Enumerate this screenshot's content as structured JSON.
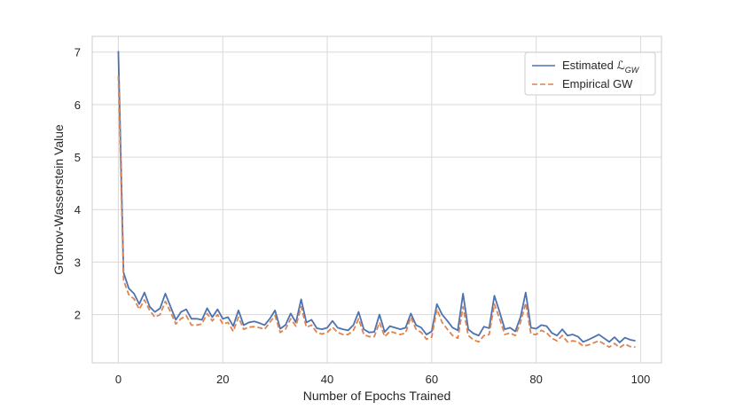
{
  "chart_data": {
    "type": "line",
    "xlabel": "Number of Epochs Trained",
    "ylabel": "Gromov-Wasserstein Value",
    "xlim": [
      -5,
      104
    ],
    "ylim": [
      1.08,
      7.3
    ],
    "x_ticks": [
      0,
      20,
      40,
      60,
      80,
      100
    ],
    "y_ticks": [
      2,
      3,
      4,
      5,
      6,
      7
    ],
    "grid": true,
    "legend_position": "top-right",
    "x": [
      0,
      1,
      2,
      3,
      4,
      5,
      6,
      7,
      8,
      9,
      10,
      11,
      12,
      13,
      14,
      15,
      16,
      17,
      18,
      19,
      20,
      21,
      22,
      23,
      24,
      25,
      26,
      27,
      28,
      29,
      30,
      31,
      32,
      33,
      34,
      35,
      36,
      37,
      38,
      39,
      40,
      41,
      42,
      43,
      44,
      45,
      46,
      47,
      48,
      49,
      50,
      51,
      52,
      53,
      54,
      55,
      56,
      57,
      58,
      59,
      60,
      61,
      62,
      63,
      64,
      65,
      66,
      67,
      68,
      69,
      70,
      71,
      72,
      73,
      74,
      75,
      76,
      77,
      78,
      79,
      80,
      81,
      82,
      83,
      84,
      85,
      86,
      87,
      88,
      89,
      90,
      91,
      92,
      93,
      94,
      95,
      96,
      97,
      98,
      99
    ],
    "series": [
      {
        "name": "Estimated ",
        "name_math": "ℒ",
        "name_sub": "GW",
        "color": "#4c72b0",
        "dash": "solid",
        "values": [
          7.02,
          2.8,
          2.5,
          2.4,
          2.2,
          2.42,
          2.15,
          2.05,
          2.12,
          2.4,
          2.15,
          1.9,
          2.05,
          2.1,
          1.92,
          1.92,
          1.9,
          2.12,
          1.95,
          2.1,
          1.92,
          1.95,
          1.78,
          2.08,
          1.8,
          1.85,
          1.87,
          1.84,
          1.8,
          1.92,
          2.08,
          1.73,
          1.8,
          2.02,
          1.85,
          2.29,
          1.85,
          1.9,
          1.74,
          1.72,
          1.75,
          1.88,
          1.75,
          1.72,
          1.7,
          1.8,
          2.05,
          1.72,
          1.66,
          1.67,
          2.0,
          1.67,
          1.78,
          1.75,
          1.72,
          1.75,
          2.02,
          1.8,
          1.75,
          1.62,
          1.68,
          2.2,
          2.0,
          1.88,
          1.75,
          1.7,
          2.4,
          1.72,
          1.64,
          1.6,
          1.77,
          1.74,
          2.36,
          2.05,
          1.72,
          1.75,
          1.68,
          1.95,
          2.42,
          1.75,
          1.73,
          1.8,
          1.78,
          1.65,
          1.6,
          1.72,
          1.6,
          1.62,
          1.58,
          1.48,
          1.52,
          1.57,
          1.62,
          1.55,
          1.48,
          1.57,
          1.47,
          1.56,
          1.52,
          1.5
        ]
      },
      {
        "name": "Empirical GW",
        "color": "#dd8452",
        "dash": "dashed",
        "values": [
          6.55,
          2.65,
          2.38,
          2.3,
          2.1,
          2.28,
          2.08,
          1.95,
          2.0,
          2.25,
          2.05,
          1.82,
          1.92,
          1.98,
          1.8,
          1.8,
          1.82,
          2.02,
          1.88,
          2.0,
          1.82,
          1.85,
          1.68,
          1.95,
          1.72,
          1.76,
          1.77,
          1.75,
          1.72,
          1.85,
          1.98,
          1.66,
          1.72,
          1.92,
          1.78,
          2.15,
          1.76,
          1.8,
          1.66,
          1.63,
          1.66,
          1.76,
          1.66,
          1.62,
          1.62,
          1.7,
          1.92,
          1.62,
          1.58,
          1.58,
          1.85,
          1.58,
          1.68,
          1.65,
          1.62,
          1.65,
          1.95,
          1.72,
          1.66,
          1.53,
          1.57,
          2.1,
          1.85,
          1.72,
          1.6,
          1.55,
          2.15,
          1.6,
          1.52,
          1.48,
          1.6,
          1.62,
          2.2,
          1.92,
          1.62,
          1.65,
          1.6,
          1.85,
          2.22,
          1.63,
          1.62,
          1.7,
          1.65,
          1.55,
          1.5,
          1.6,
          1.48,
          1.5,
          1.48,
          1.4,
          1.42,
          1.46,
          1.5,
          1.44,
          1.38,
          1.45,
          1.37,
          1.44,
          1.39,
          1.38
        ]
      }
    ]
  }
}
